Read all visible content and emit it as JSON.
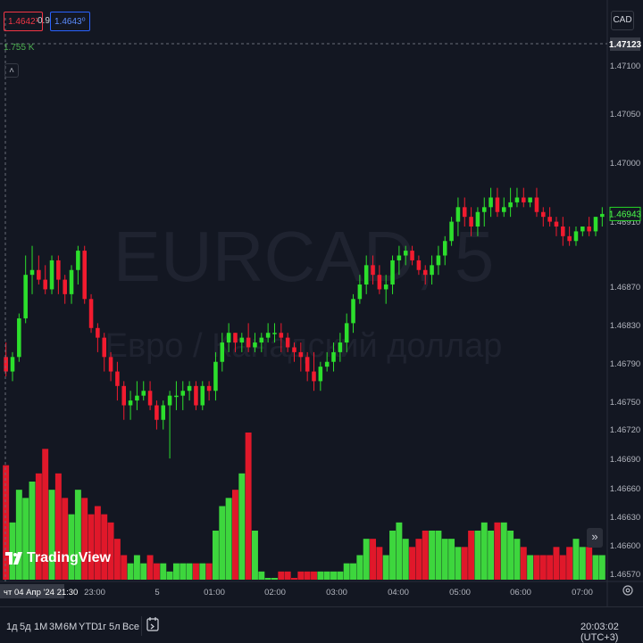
{
  "header": {
    "bid": "1.4642¹",
    "spread": "0.9",
    "ask": "1.4643⁰",
    "volume_label": "1.755 K",
    "currency": "CAD"
  },
  "watermark": {
    "symbol": "EURCAD, 5",
    "description": "Евро / Канадский доллар"
  },
  "logo_text": "TradingView",
  "bottom_bar": {
    "ranges": [
      "1д",
      "5д",
      "1М",
      "3М",
      "6М",
      "YTD",
      "1г",
      "5л",
      "Все"
    ],
    "clock": "20:03:02 (UTC+3)"
  },
  "chart_data": {
    "type": "candlestick",
    "symbol": "EURCAD",
    "interval": "5",
    "y_axis_labels": [
      1.471,
      1.4705,
      1.47,
      1.4691,
      1.4687,
      1.4683,
      1.4679,
      1.4675,
      1.4672,
      1.4669,
      1.4666,
      1.4663,
      1.466,
      1.4657
    ],
    "y_axis_label_text": [
      "1.47100",
      "1.47050",
      "1.47000",
      "1.46910",
      "1.46870",
      "1.46830",
      "1.46790",
      "1.46750",
      "1.46720",
      "1.46690",
      "1.46660",
      "1.46630",
      "1.46600",
      "1.46570"
    ],
    "ylim": [
      1.4656,
      1.4714
    ],
    "current_price": "1.46943",
    "crosshair_price": "1.47123",
    "x_axis_labels": [
      "23:00",
      "5",
      "01:00",
      "02:00",
      "03:00",
      "04:00",
      "05:00",
      "06:00",
      "07:00"
    ],
    "crosshair_time": "чт 04 Апр '24  21:30",
    "candles": [
      {
        "o": 1.46795,
        "h": 1.4681,
        "l": 1.46775,
        "c": 1.4678
      },
      {
        "o": 1.4678,
        "h": 1.468,
        "l": 1.4677,
        "c": 1.46795
      },
      {
        "o": 1.46795,
        "h": 1.4684,
        "l": 1.4679,
        "c": 1.46835
      },
      {
        "o": 1.46835,
        "h": 1.469,
        "l": 1.4683,
        "c": 1.4688
      },
      {
        "o": 1.4688,
        "h": 1.4691,
        "l": 1.4686,
        "c": 1.46885
      },
      {
        "o": 1.46885,
        "h": 1.469,
        "l": 1.4687,
        "c": 1.46875
      },
      {
        "o": 1.46875,
        "h": 1.4689,
        "l": 1.4686,
        "c": 1.46865
      },
      {
        "o": 1.46865,
        "h": 1.469,
        "l": 1.4686,
        "c": 1.46895
      },
      {
        "o": 1.46895,
        "h": 1.469,
        "l": 1.4686,
        "c": 1.46875
      },
      {
        "o": 1.46875,
        "h": 1.4688,
        "l": 1.4685,
        "c": 1.4686
      },
      {
        "o": 1.4686,
        "h": 1.4689,
        "l": 1.4685,
        "c": 1.46885
      },
      {
        "o": 1.46885,
        "h": 1.4691,
        "l": 1.4687,
        "c": 1.46905
      },
      {
        "o": 1.46905,
        "h": 1.4691,
        "l": 1.4685,
        "c": 1.46855
      },
      {
        "o": 1.46855,
        "h": 1.4686,
        "l": 1.4682,
        "c": 1.46825
      },
      {
        "o": 1.46825,
        "h": 1.4683,
        "l": 1.468,
        "c": 1.46815
      },
      {
        "o": 1.46815,
        "h": 1.4682,
        "l": 1.4678,
        "c": 1.46795
      },
      {
        "o": 1.46795,
        "h": 1.468,
        "l": 1.4677,
        "c": 1.4678
      },
      {
        "o": 1.4678,
        "h": 1.4679,
        "l": 1.4675,
        "c": 1.46765
      },
      {
        "o": 1.46765,
        "h": 1.4677,
        "l": 1.4673,
        "c": 1.46745
      },
      {
        "o": 1.46745,
        "h": 1.4676,
        "l": 1.4673,
        "c": 1.4675
      },
      {
        "o": 1.4675,
        "h": 1.4677,
        "l": 1.4674,
        "c": 1.46755
      },
      {
        "o": 1.46755,
        "h": 1.4677,
        "l": 1.4675,
        "c": 1.4676
      },
      {
        "o": 1.4676,
        "h": 1.4677,
        "l": 1.4674,
        "c": 1.46745
      },
      {
        "o": 1.46745,
        "h": 1.4675,
        "l": 1.4672,
        "c": 1.4673
      },
      {
        "o": 1.4673,
        "h": 1.4675,
        "l": 1.4672,
        "c": 1.46745
      },
      {
        "o": 1.46745,
        "h": 1.4676,
        "l": 1.4669,
        "c": 1.46755
      },
      {
        "o": 1.46755,
        "h": 1.4677,
        "l": 1.4674,
        "c": 1.46755
      },
      {
        "o": 1.46755,
        "h": 1.4677,
        "l": 1.4674,
        "c": 1.4676
      },
      {
        "o": 1.4676,
        "h": 1.4677,
        "l": 1.4675,
        "c": 1.46765
      },
      {
        "o": 1.46765,
        "h": 1.4677,
        "l": 1.4674,
        "c": 1.46745
      },
      {
        "o": 1.46745,
        "h": 1.4677,
        "l": 1.4674,
        "c": 1.46765
      },
      {
        "o": 1.46765,
        "h": 1.4677,
        "l": 1.4675,
        "c": 1.4676
      },
      {
        "o": 1.4676,
        "h": 1.468,
        "l": 1.4675,
        "c": 1.4679
      },
      {
        "o": 1.4679,
        "h": 1.4682,
        "l": 1.4678,
        "c": 1.4681
      },
      {
        "o": 1.4681,
        "h": 1.4683,
        "l": 1.468,
        "c": 1.4682
      },
      {
        "o": 1.4682,
        "h": 1.4682,
        "l": 1.468,
        "c": 1.4681
      },
      {
        "o": 1.4681,
        "h": 1.4682,
        "l": 1.468,
        "c": 1.46815
      },
      {
        "o": 1.46815,
        "h": 1.4683,
        "l": 1.468,
        "c": 1.46805
      },
      {
        "o": 1.46805,
        "h": 1.4682,
        "l": 1.468,
        "c": 1.4681
      },
      {
        "o": 1.4681,
        "h": 1.4682,
        "l": 1.468,
        "c": 1.46815
      },
      {
        "o": 1.46815,
        "h": 1.4683,
        "l": 1.4681,
        "c": 1.4682
      },
      {
        "o": 1.4682,
        "h": 1.4683,
        "l": 1.4681,
        "c": 1.4682
      },
      {
        "o": 1.4682,
        "h": 1.4683,
        "l": 1.468,
        "c": 1.46815
      },
      {
        "o": 1.46815,
        "h": 1.4682,
        "l": 1.468,
        "c": 1.46805
      },
      {
        "o": 1.46805,
        "h": 1.4681,
        "l": 1.4679,
        "c": 1.468
      },
      {
        "o": 1.468,
        "h": 1.4681,
        "l": 1.4678,
        "c": 1.46795
      },
      {
        "o": 1.46795,
        "h": 1.468,
        "l": 1.4677,
        "c": 1.4678
      },
      {
        "o": 1.4678,
        "h": 1.468,
        "l": 1.4676,
        "c": 1.4677
      },
      {
        "o": 1.4677,
        "h": 1.4679,
        "l": 1.4676,
        "c": 1.46785
      },
      {
        "o": 1.46785,
        "h": 1.468,
        "l": 1.4678,
        "c": 1.4679
      },
      {
        "o": 1.4679,
        "h": 1.4681,
        "l": 1.4678,
        "c": 1.468
      },
      {
        "o": 1.468,
        "h": 1.4682,
        "l": 1.4679,
        "c": 1.4681
      },
      {
        "o": 1.4681,
        "h": 1.4684,
        "l": 1.468,
        "c": 1.4683
      },
      {
        "o": 1.4683,
        "h": 1.4686,
        "l": 1.4682,
        "c": 1.46855
      },
      {
        "o": 1.46855,
        "h": 1.4688,
        "l": 1.4685,
        "c": 1.4687
      },
      {
        "o": 1.4687,
        "h": 1.469,
        "l": 1.4686,
        "c": 1.4689
      },
      {
        "o": 1.4689,
        "h": 1.469,
        "l": 1.4687,
        "c": 1.4688
      },
      {
        "o": 1.4688,
        "h": 1.4689,
        "l": 1.4686,
        "c": 1.46865
      },
      {
        "o": 1.46865,
        "h": 1.4688,
        "l": 1.4685,
        "c": 1.4687
      },
      {
        "o": 1.4687,
        "h": 1.469,
        "l": 1.4686,
        "c": 1.46895
      },
      {
        "o": 1.46895,
        "h": 1.4691,
        "l": 1.4688,
        "c": 1.469
      },
      {
        "o": 1.469,
        "h": 1.4691,
        "l": 1.4689,
        "c": 1.46905
      },
      {
        "o": 1.46905,
        "h": 1.4691,
        "l": 1.4689,
        "c": 1.46895
      },
      {
        "o": 1.46895,
        "h": 1.469,
        "l": 1.4688,
        "c": 1.46885
      },
      {
        "o": 1.46885,
        "h": 1.4689,
        "l": 1.4687,
        "c": 1.4688
      },
      {
        "o": 1.4688,
        "h": 1.469,
        "l": 1.4687,
        "c": 1.4689
      },
      {
        "o": 1.4689,
        "h": 1.4691,
        "l": 1.4688,
        "c": 1.469
      },
      {
        "o": 1.469,
        "h": 1.4692,
        "l": 1.4689,
        "c": 1.46915
      },
      {
        "o": 1.46915,
        "h": 1.4694,
        "l": 1.4691,
        "c": 1.46935
      },
      {
        "o": 1.46935,
        "h": 1.4696,
        "l": 1.4692,
        "c": 1.4695
      },
      {
        "o": 1.4695,
        "h": 1.4696,
        "l": 1.4693,
        "c": 1.4694
      },
      {
        "o": 1.4694,
        "h": 1.4695,
        "l": 1.4692,
        "c": 1.4693
      },
      {
        "o": 1.4693,
        "h": 1.4695,
        "l": 1.4692,
        "c": 1.46945
      },
      {
        "o": 1.46945,
        "h": 1.4696,
        "l": 1.4693,
        "c": 1.4695
      },
      {
        "o": 1.4695,
        "h": 1.4697,
        "l": 1.4694,
        "c": 1.4696
      },
      {
        "o": 1.4696,
        "h": 1.4697,
        "l": 1.4694,
        "c": 1.46945
      },
      {
        "o": 1.46945,
        "h": 1.4696,
        "l": 1.4694,
        "c": 1.4695
      },
      {
        "o": 1.4695,
        "h": 1.4697,
        "l": 1.4694,
        "c": 1.46955
      },
      {
        "o": 1.46955,
        "h": 1.4697,
        "l": 1.4695,
        "c": 1.4696
      },
      {
        "o": 1.4696,
        "h": 1.4697,
        "l": 1.4695,
        "c": 1.46955
      },
      {
        "o": 1.46955,
        "h": 1.4696,
        "l": 1.4695,
        "c": 1.4696
      },
      {
        "o": 1.4696,
        "h": 1.4697,
        "l": 1.4694,
        "c": 1.46945
      },
      {
        "o": 1.46945,
        "h": 1.4695,
        "l": 1.4693,
        "c": 1.4694
      },
      {
        "o": 1.4694,
        "h": 1.4695,
        "l": 1.4693,
        "c": 1.46935
      },
      {
        "o": 1.46935,
        "h": 1.4694,
        "l": 1.4692,
        "c": 1.4693
      },
      {
        "o": 1.4693,
        "h": 1.4694,
        "l": 1.4691,
        "c": 1.4692
      },
      {
        "o": 1.4692,
        "h": 1.4693,
        "l": 1.4691,
        "c": 1.46915
      },
      {
        "o": 1.46915,
        "h": 1.4693,
        "l": 1.4691,
        "c": 1.46925
      },
      {
        "o": 1.46925,
        "h": 1.4693,
        "l": 1.4692,
        "c": 1.4693
      },
      {
        "o": 1.4693,
        "h": 1.4694,
        "l": 1.4692,
        "c": 1.46925
      },
      {
        "o": 1.46925,
        "h": 1.4694,
        "l": 1.4692,
        "c": 1.4694
      },
      {
        "o": 1.4694,
        "h": 1.4695,
        "l": 1.4693,
        "c": 1.46943
      }
    ],
    "volume": [
      14,
      7,
      11,
      10,
      12,
      13,
      16,
      11,
      13,
      10,
      8,
      11,
      10,
      8,
      9,
      8,
      7,
      5,
      3,
      2,
      3,
      2,
      3,
      2,
      2,
      1,
      2,
      2,
      2,
      2,
      2,
      2,
      6,
      9,
      10,
      11,
      13,
      18,
      6,
      1,
      0,
      0,
      1,
      1,
      0,
      1,
      1,
      1,
      1,
      1,
      1,
      1,
      2,
      2,
      3,
      5,
      5,
      4,
      3,
      6,
      7,
      5,
      4,
      5,
      6,
      6,
      6,
      5,
      5,
      4,
      4,
      6,
      6,
      7,
      6,
      7,
      7,
      6,
      5,
      4,
      3,
      3,
      3,
      3,
      4,
      3,
      4,
      5,
      4,
      4,
      3,
      3
    ]
  }
}
